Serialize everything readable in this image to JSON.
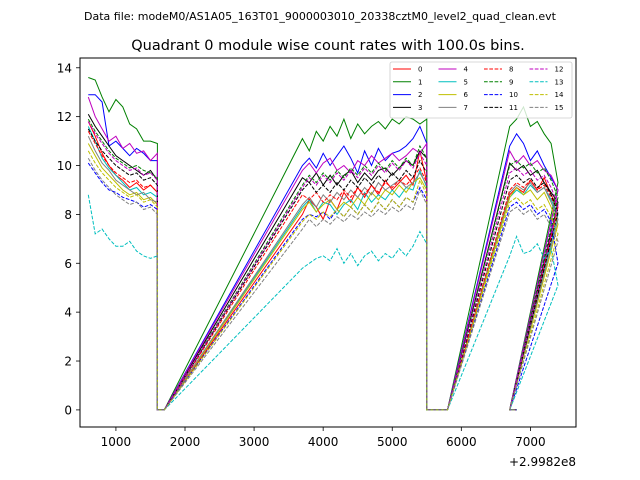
{
  "chart_data": {
    "type": "line",
    "suptitle": "Data file: modeM0/AS1A05_163T01_9000003010_20338cztM0_level2_quad_clean.evt",
    "title": "Quadrant 0 module wise count rates with 100.0s bins.",
    "xlabel": "",
    "ylabel": "",
    "x_offset_label": "+2.9982e8",
    "xlim": [
      480,
      7660
    ],
    "ylim": [
      -0.7,
      14.4
    ],
    "xticks": [
      1000,
      2000,
      3000,
      4000,
      5000,
      6000,
      7000
    ],
    "yticks": [
      0,
      2,
      4,
      6,
      8,
      10,
      12,
      14
    ],
    "grid": false,
    "legend_position": "top-right",
    "segments": [
      {
        "x0": 600,
        "n": 11,
        "step": 100
      },
      {
        "x0": 3700,
        "n": 19,
        "step": 100
      },
      {
        "x0": 6700,
        "n": 8,
        "step": 100
      }
    ],
    "gaps": [
      {
        "x0": 1600,
        "x1": 1700
      },
      {
        "x0": 5500,
        "x1": 5800
      },
      {
        "x0": 6700,
        "x1": 6800
      }
    ],
    "series": [
      {
        "name": "0",
        "color": "#ff0000",
        "dash": false,
        "values": [
          11.8,
          11.2,
          10.5,
          10.0,
          9.6,
          9.4,
          9.1,
          9.3,
          9.0,
          9.2,
          8.9,
          8.0,
          8.6,
          8.3,
          7.8,
          8.6,
          8.2,
          8.9,
          8.5,
          9.1,
          8.7,
          9.2,
          8.8,
          9.4,
          9.0,
          9.3,
          9.6,
          9.2,
          10.6,
          9.3,
          8.8,
          9.1,
          8.9,
          9.4,
          9.0,
          9.5,
          8.8,
          8.3
        ]
      },
      {
        "name": "1",
        "color": "#008000",
        "dash": false,
        "values": [
          13.6,
          13.5,
          12.8,
          12.2,
          12.7,
          12.4,
          11.7,
          11.5,
          11.0,
          11.0,
          10.9,
          11.1,
          10.6,
          11.4,
          11.0,
          11.6,
          11.2,
          11.9,
          11.1,
          11.7,
          11.3,
          11.6,
          11.8,
          11.5,
          11.9,
          11.7,
          12.0,
          11.9,
          11.7,
          11.9,
          11.6,
          11.9,
          12.4,
          11.6,
          11.8,
          11.3,
          10.9,
          9.3
        ]
      },
      {
        "name": "2",
        "color": "#0000ff",
        "dash": false,
        "values": [
          12.9,
          12.9,
          12.6,
          10.8,
          11.0,
          10.7,
          10.4,
          10.7,
          10.5,
          10.2,
          10.2,
          10.0,
          10.3,
          9.9,
          10.5,
          10.0,
          10.4,
          10.8,
          10.3,
          9.7,
          10.6,
          10.0,
          10.7,
          10.2,
          10.5,
          10.6,
          10.8,
          11.1,
          11.6,
          10.9,
          10.8,
          11.3,
          10.9,
          10.2,
          10.6,
          10.0,
          9.5,
          9.0
        ]
      },
      {
        "name": "3",
        "color": "#000000",
        "dash": false,
        "values": [
          12.1,
          11.6,
          11.2,
          10.8,
          10.4,
          10.2,
          10.0,
          9.8,
          9.6,
          9.8,
          9.4,
          9.5,
          9.3,
          9.7,
          9.2,
          9.6,
          9.2,
          9.6,
          9.8,
          9.3,
          9.7,
          9.4,
          9.8,
          9.9,
          9.6,
          9.9,
          10.2,
          10.0,
          10.6,
          10.3,
          10.1,
          9.8,
          10.0,
          9.6,
          9.8,
          9.3,
          8.9,
          8.5
        ]
      },
      {
        "name": "4",
        "color": "#bf00bf",
        "dash": false,
        "values": [
          12.8,
          12.0,
          11.5,
          11.0,
          11.2,
          10.7,
          10.9,
          10.5,
          10.6,
          10.2,
          10.5,
          9.8,
          10.1,
          9.7,
          10.1,
          10.3,
          9.8,
          10.0,
          9.7,
          10.2,
          10.0,
          10.4,
          10.1,
          10.3,
          10.5,
          10.2,
          10.4,
          10.7,
          10.5,
          10.9,
          10.6,
          10.1,
          10.4,
          10.0,
          10.2,
          9.8,
          9.6,
          9.0
        ]
      },
      {
        "name": "5",
        "color": "#00bfbf",
        "dash": false,
        "values": [
          11.6,
          11.0,
          10.3,
          9.9,
          9.6,
          9.3,
          9.0,
          9.1,
          8.8,
          8.9,
          8.7,
          8.3,
          8.6,
          8.1,
          8.5,
          8.4,
          8.0,
          8.4,
          8.6,
          8.2,
          8.9,
          8.5,
          8.8,
          8.6,
          9.0,
          8.7,
          9.1,
          9.0,
          9.8,
          9.1,
          8.7,
          9.0,
          8.8,
          9.2,
          8.9,
          9.1,
          8.6,
          8.0
        ]
      },
      {
        "name": "6",
        "color": "#bfbf00",
        "dash": false,
        "values": [
          10.9,
          10.4,
          9.9,
          9.6,
          9.3,
          9.0,
          8.8,
          8.9,
          8.6,
          8.7,
          8.4,
          8.2,
          8.5,
          8.1,
          8.4,
          8.6,
          8.2,
          8.5,
          8.3,
          8.7,
          8.4,
          8.9,
          8.6,
          9.0,
          8.8,
          9.2,
          8.9,
          9.3,
          9.5,
          9.0,
          8.7,
          9.1,
          8.8,
          9.0,
          8.6,
          8.9,
          8.3,
          7.6
        ]
      },
      {
        "name": "7",
        "color": "#808080",
        "dash": false,
        "values": [
          11.2,
          10.6,
          10.1,
          9.8,
          9.4,
          9.2,
          9.0,
          8.8,
          8.9,
          8.6,
          8.5,
          8.4,
          8.7,
          8.3,
          8.8,
          8.5,
          8.9,
          8.6,
          9.0,
          8.7,
          9.1,
          8.8,
          9.3,
          9.0,
          9.2,
          9.4,
          9.1,
          9.3,
          9.7,
          9.2,
          8.9,
          9.2,
          9.0,
          9.3,
          8.9,
          9.1,
          8.5,
          7.8
        ]
      },
      {
        "name": "8",
        "color": "#ff0000",
        "dash": true,
        "values": [
          11.4,
          10.9,
          10.4,
          10.0,
          9.7,
          9.5,
          9.3,
          9.4,
          9.1,
          9.2,
          8.9,
          8.8,
          8.6,
          8.9,
          8.5,
          8.8,
          8.6,
          9.0,
          8.7,
          9.1,
          8.8,
          9.2,
          8.9,
          9.3,
          9.1,
          9.4,
          9.2,
          9.5,
          9.9,
          9.3,
          9.0,
          9.3,
          9.1,
          9.4,
          9.0,
          9.2,
          8.7,
          8.1
        ]
      },
      {
        "name": "9",
        "color": "#008000",
        "dash": true,
        "values": [
          11.9,
          11.4,
          11.0,
          10.6,
          10.3,
          10.1,
          9.9,
          10.0,
          9.8,
          9.7,
          9.5,
          9.2,
          9.6,
          9.3,
          9.7,
          9.4,
          9.8,
          9.5,
          9.9,
          9.6,
          10.0,
          9.7,
          10.1,
          9.8,
          10.2,
          9.9,
          10.3,
          10.0,
          10.8,
          10.3,
          10.0,
          10.2,
          9.9,
          10.1,
          9.7,
          9.9,
          9.4,
          8.7
        ]
      },
      {
        "name": "10",
        "color": "#0000ff",
        "dash": true,
        "values": [
          10.1,
          9.7,
          9.3,
          9.0,
          8.9,
          8.7,
          8.6,
          8.5,
          8.3,
          8.4,
          8.2,
          7.8,
          8.0,
          7.9,
          8.1,
          7.8,
          8.2,
          7.9,
          8.3,
          8.0,
          8.4,
          8.1,
          8.5,
          8.2,
          8.6,
          8.3,
          8.7,
          8.5,
          9.1,
          8.6,
          8.3,
          8.5,
          8.2,
          8.4,
          8.0,
          8.2,
          7.7,
          6.0
        ]
      },
      {
        "name": "11",
        "color": "#000000",
        "dash": true,
        "values": [
          11.5,
          11.0,
          10.6,
          10.3,
          10.0,
          9.8,
          9.6,
          9.7,
          9.4,
          9.5,
          9.2,
          9.0,
          9.3,
          8.9,
          9.2,
          8.9,
          9.3,
          9.0,
          9.4,
          9.1,
          9.5,
          9.2,
          9.6,
          9.3,
          9.7,
          9.4,
          9.8,
          9.5,
          10.2,
          9.7,
          9.4,
          9.6,
          9.3,
          9.5,
          9.1,
          9.3,
          8.8,
          8.1
        ]
      },
      {
        "name": "12",
        "color": "#bf00bf",
        "dash": true,
        "values": [
          11.8,
          11.3,
          10.9,
          10.5,
          10.2,
          10.0,
          9.8,
          9.9,
          9.6,
          9.7,
          9.4,
          9.1,
          9.5,
          9.2,
          9.6,
          9.3,
          9.7,
          9.4,
          9.8,
          9.5,
          9.9,
          9.6,
          10.0,
          9.7,
          10.1,
          9.8,
          10.2,
          9.9,
          10.5,
          10.0,
          9.7,
          9.9,
          9.6,
          9.8,
          9.4,
          9.6,
          9.1,
          8.4
        ]
      },
      {
        "name": "13",
        "color": "#00bfbf",
        "dash": true,
        "values": [
          8.8,
          7.2,
          7.4,
          7.0,
          6.7,
          6.7,
          6.9,
          6.5,
          6.3,
          6.2,
          6.3,
          5.8,
          6.0,
          6.2,
          6.3,
          6.1,
          6.6,
          6.0,
          6.4,
          5.9,
          6.3,
          6.5,
          6.1,
          6.4,
          6.2,
          6.6,
          6.3,
          6.7,
          7.3,
          6.8,
          6.3,
          7.1,
          6.4,
          6.5,
          6.8,
          6.2,
          6.6,
          5.1
        ]
      },
      {
        "name": "14",
        "color": "#bfbf00",
        "dash": true,
        "values": [
          10.6,
          10.1,
          9.7,
          9.4,
          9.1,
          8.9,
          8.7,
          8.8,
          8.5,
          8.6,
          8.3,
          7.7,
          8.0,
          7.8,
          8.1,
          7.9,
          8.2,
          7.9,
          8.3,
          8.0,
          8.4,
          8.1,
          8.5,
          8.2,
          8.6,
          8.3,
          8.7,
          8.5,
          9.4,
          8.8,
          8.5,
          8.7,
          8.4,
          8.6,
          8.2,
          8.4,
          7.9,
          7.2
        ]
      },
      {
        "name": "15",
        "color": "#808080",
        "dash": true,
        "values": [
          10.3,
          9.8,
          9.4,
          9.1,
          8.8,
          8.6,
          8.4,
          8.5,
          8.2,
          8.3,
          8.0,
          7.4,
          7.8,
          7.5,
          7.8,
          7.6,
          7.9,
          7.7,
          8.0,
          7.8,
          8.1,
          7.9,
          8.2,
          8.0,
          8.3,
          8.1,
          8.4,
          8.2,
          9.0,
          8.4,
          8.1,
          8.3,
          8.0,
          8.2,
          7.8,
          8.0,
          7.5,
          6.9
        ]
      }
    ]
  }
}
